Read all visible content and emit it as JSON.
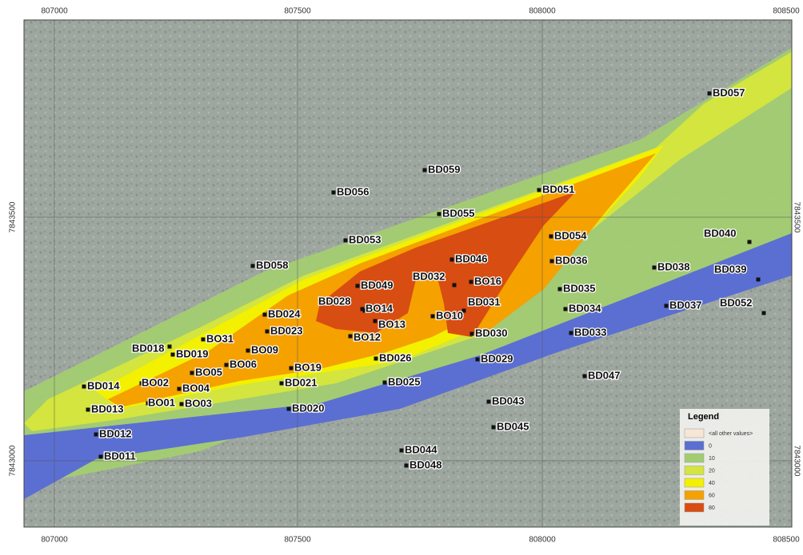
{
  "axes": {
    "x_labels": [
      "807000",
      "807500",
      "808000",
      "808500"
    ],
    "y_labels": [
      "7843500",
      "7843000"
    ]
  },
  "boreholes": [
    "BD057",
    "BD059",
    "BD056",
    "BD051",
    "BD055",
    "BD053",
    "BD054",
    "BD040",
    "BD058",
    "BD046",
    "BD036",
    "BD038",
    "BD039",
    "BD049",
    "BD032",
    "BO16",
    "BD035",
    "BD028",
    "BO14",
    "BD031",
    "BD034",
    "BD037",
    "BD052",
    "BD024",
    "BO13",
    "BO10",
    "BD023",
    "BO12",
    "BD030",
    "BD033",
    "BD018",
    "BO31",
    "BD019",
    "BO09",
    "BD026",
    "BD029",
    "BO06",
    "BO19",
    "BO05",
    "BD047",
    "BD021",
    "BD025",
    "BD014",
    "BO02",
    "BO04",
    "BD043",
    "BO01",
    "BO03",
    "BD020",
    "BD013",
    "BD045",
    "BD012",
    "BD044",
    "BD011",
    "BD048"
  ],
  "legend": {
    "title": "Legend",
    "entries": [
      "<all other values>",
      "0",
      "10",
      "20",
      "40",
      "60",
      "80"
    ]
  }
}
